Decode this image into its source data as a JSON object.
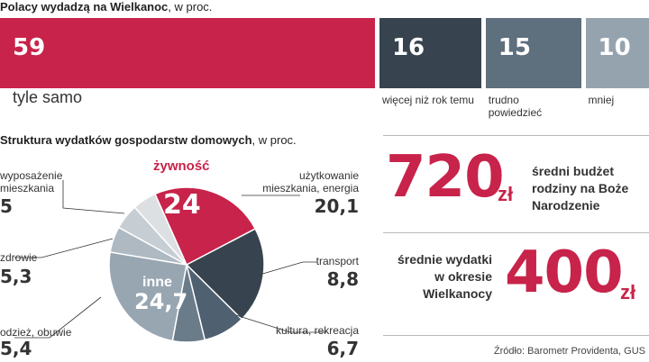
{
  "title1_bold": "Polacy wydadzą na Wielkanoc",
  "title1_rest": ", w proc.",
  "title2_bold": "Struktura wydatków gospodarstw domowych",
  "title2_rest": ", w proc.",
  "colors": {
    "accent": "#c8234a",
    "dark": "#37444f",
    "mid": "#5e6f7e",
    "light": "#95a3af",
    "pale": "#dde0e3"
  },
  "chart_data": [
    {
      "type": "bar",
      "orientation": "horizontal-stacked",
      "categories": [
        "tyle samo",
        "więcej niż rok temu",
        "trudno powiedzieć",
        "mniej"
      ],
      "values": [
        59,
        16,
        15,
        10
      ],
      "value_labels": [
        "59",
        "16",
        "15",
        "10"
      ],
      "category_labels": [
        "tyle samo",
        "więcej niż rok temu",
        "trudno\npowiedzieć",
        "mniej"
      ]
    },
    {
      "type": "pie",
      "categories": [
        "żywność",
        "użytkowanie mieszkania, energia",
        "transport",
        "kultura, rekreacja",
        "inne",
        "odzież, obuwie",
        "zdrowie",
        "wyposażenie mieszkania"
      ],
      "values": [
        24,
        20.1,
        8.8,
        6.7,
        24.7,
        5.4,
        5.3,
        5
      ],
      "value_labels": [
        "24",
        "20,1",
        "8,8",
        "6,7",
        "24,7",
        "5,4",
        "5,3",
        "5"
      ],
      "label_lines": [
        "żywność",
        "użytkowanie\nmieszkania, energia",
        "transport",
        "kultura, rekreacja",
        "inne",
        "odzież, obuwie",
        "zdrowie",
        "wyposażenie\nmieszkania"
      ]
    }
  ],
  "stats": {
    "budget_value": "720",
    "budget_unit": "zł",
    "budget_desc": "średni budżet\nrodziny na Boże\nNarodzenie",
    "easter_value": "400",
    "easter_unit": "zł",
    "easter_desc": "średnie wydatki\nw okresie\nWielkanocy"
  },
  "source": "Źródło: Barometr Providenta, GUS"
}
